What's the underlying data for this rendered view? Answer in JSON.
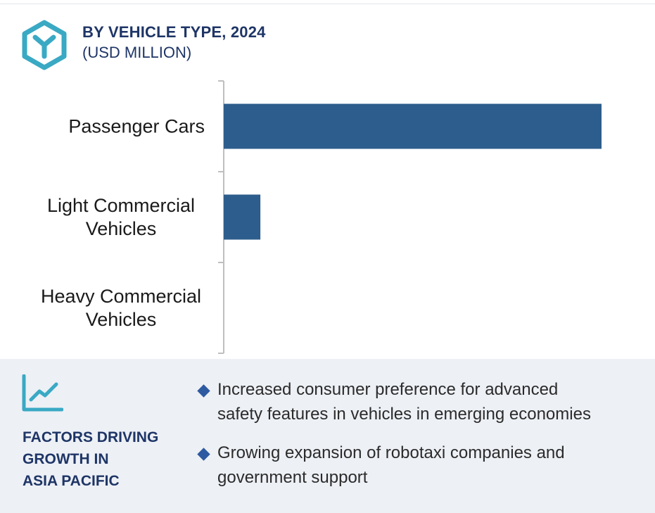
{
  "header": {
    "title": "BY VEHICLE TYPE, 2024",
    "subtitle": "(USD MILLION)",
    "icon": "y-hexagon-icon",
    "icon_color": "#3aa9c4"
  },
  "chart_data": {
    "type": "bar",
    "orientation": "horizontal",
    "title": "BY VEHICLE TYPE, 2024",
    "subtitle": "(USD MILLION)",
    "categories": [
      "Passenger Cars",
      "Light Commercial Vehicles",
      "Heavy Commercial Vehicles"
    ],
    "category_lines": [
      [
        "Passenger Cars"
      ],
      [
        "Light Commercial",
        "Vehicles"
      ],
      [
        "Heavy Commercial",
        "Vehicles"
      ]
    ],
    "values": [
      100,
      9.7,
      0
    ],
    "xlim": [
      0,
      100
    ],
    "grid": false,
    "legend": "none",
    "bar_color": "#2d5d8c"
  },
  "factors": {
    "icon": "line-chart-icon",
    "title_lines": [
      "FACTORS DRIVING",
      "GROWTH IN",
      "ASIA PACIFIC"
    ],
    "items": [
      {
        "lines": [
          "Increased consumer preference for advanced",
          "safety features in vehicles in emerging economies"
        ]
      },
      {
        "lines": [
          "Growing expansion of robotaxi companies and",
          "government support"
        ]
      }
    ],
    "bullet_color": "#2d5aa0"
  }
}
